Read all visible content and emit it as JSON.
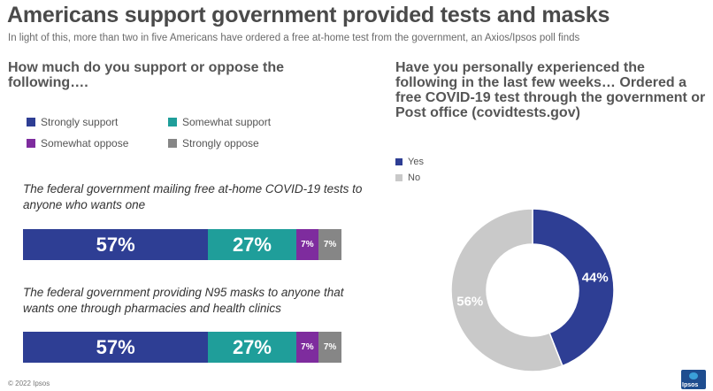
{
  "header": {
    "title": "Americans support government provided tests and masks",
    "subtitle": "In light of this, more than two in five Americans have ordered a free at-home test from the government, an Axios/Ipsos poll finds"
  },
  "left": {
    "question": "How much do you support or oppose the following….",
    "legend": [
      "Strongly support",
      "Somewhat support",
      "Somewhat oppose",
      "Strongly oppose"
    ]
  },
  "right": {
    "question": "Have you personally experienced the following in the last few weeks… Ordered a free COVID-19 test through the government or Post office (covidtests.gov)",
    "legend": [
      "Yes",
      "No"
    ]
  },
  "colors": {
    "strongly_support": "#2e3e94",
    "somewhat_support": "#1f9e9a",
    "somewhat_oppose": "#7e2c9e",
    "strongly_oppose": "#868686",
    "yes": "#2e3e94",
    "no": "#c9c9c9"
  },
  "chart_data": [
    {
      "type": "bar",
      "orientation": "horizontal",
      "stacked": true,
      "categories": [
        "The federal government mailing free at-home COVID-19 tests to anyone who wants one",
        "The federal government providing N95 masks to anyone that wants one through pharmacies and health clinics"
      ],
      "series": [
        {
          "name": "Strongly support",
          "values": [
            57,
            57
          ],
          "labels": [
            "57%",
            "57%"
          ]
        },
        {
          "name": "Somewhat support",
          "values": [
            27,
            27
          ],
          "labels": [
            "27%",
            "27%"
          ]
        },
        {
          "name": "Somewhat oppose",
          "values": [
            7,
            7
          ],
          "labels": [
            "7%",
            "7%"
          ]
        },
        {
          "name": "Strongly oppose",
          "values": [
            7,
            7
          ],
          "labels": [
            "7%",
            "7%"
          ]
        }
      ],
      "unit": "%",
      "legend": "top"
    },
    {
      "type": "pie",
      "donut": true,
      "categories": [
        "Yes",
        "No"
      ],
      "values": [
        44,
        56
      ],
      "labels": [
        "44%",
        "56%"
      ],
      "unit": "%",
      "legend": "top-left"
    }
  ],
  "footer": {
    "copyright": "© 2022 Ipsos",
    "logo_text": "Ipsos"
  }
}
